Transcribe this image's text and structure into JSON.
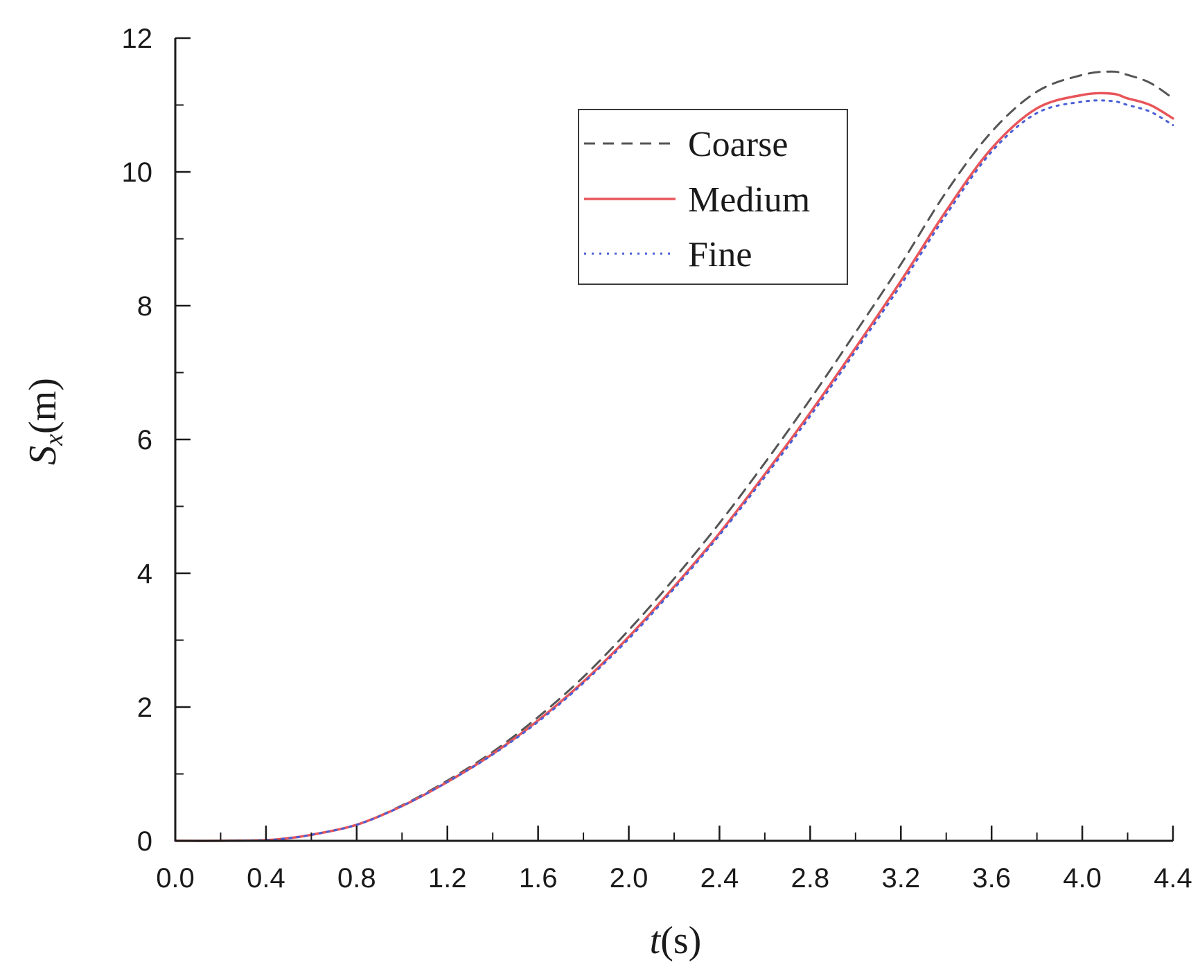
{
  "chart_data": {
    "type": "line",
    "title": "",
    "xlabel": {
      "symbol": "t",
      "unit": "(s)"
    },
    "ylabel": {
      "symbol": "S",
      "subscript": "x",
      "unit": "(m)"
    },
    "xlim": [
      0,
      4.4
    ],
    "ylim": [
      0,
      12
    ],
    "x_ticks": [
      "0.0",
      "0.4",
      "0.8",
      "1.2",
      "1.6",
      "2.0",
      "2.4",
      "2.8",
      "3.2",
      "3.6",
      "4.0",
      "4.4"
    ],
    "y_ticks": [
      "0",
      "2",
      "4",
      "6",
      "8",
      "10",
      "12"
    ],
    "grid": false,
    "legend_position": "top-center",
    "x": [
      0.0,
      0.2,
      0.4,
      0.5,
      0.6,
      0.8,
      1.0,
      1.2,
      1.4,
      1.6,
      1.8,
      2.0,
      2.2,
      2.4,
      2.6,
      2.8,
      3.0,
      3.2,
      3.4,
      3.6,
      3.8,
      4.0,
      4.13,
      4.2,
      4.3,
      4.4
    ],
    "series": [
      {
        "name": "Coarse",
        "style": "dashed",
        "color": "#555555",
        "values": [
          0.0,
          0.0,
          0.01,
          0.04,
          0.09,
          0.24,
          0.53,
          0.9,
          1.33,
          1.85,
          2.45,
          3.15,
          3.92,
          4.75,
          5.65,
          6.6,
          7.6,
          8.62,
          9.7,
          10.6,
          11.2,
          11.45,
          11.5,
          11.45,
          11.33,
          11.1
        ]
      },
      {
        "name": "Medium",
        "style": "solid",
        "color": "#e8555a",
        "values": [
          0.0,
          0.0,
          0.01,
          0.04,
          0.09,
          0.24,
          0.52,
          0.88,
          1.3,
          1.8,
          2.38,
          3.05,
          3.8,
          4.6,
          5.48,
          6.4,
          7.37,
          8.37,
          9.42,
          10.35,
          10.95,
          11.15,
          11.17,
          11.1,
          11.0,
          10.8
        ]
      },
      {
        "name": "Fine",
        "style": "dotted",
        "color": "#4a5fd6",
        "values": [
          0.0,
          0.0,
          0.01,
          0.04,
          0.09,
          0.24,
          0.52,
          0.88,
          1.29,
          1.78,
          2.36,
          3.02,
          3.77,
          4.57,
          5.44,
          6.35,
          7.32,
          8.31,
          9.36,
          10.3,
          10.88,
          11.05,
          11.06,
          11.0,
          10.9,
          10.7
        ]
      }
    ]
  }
}
